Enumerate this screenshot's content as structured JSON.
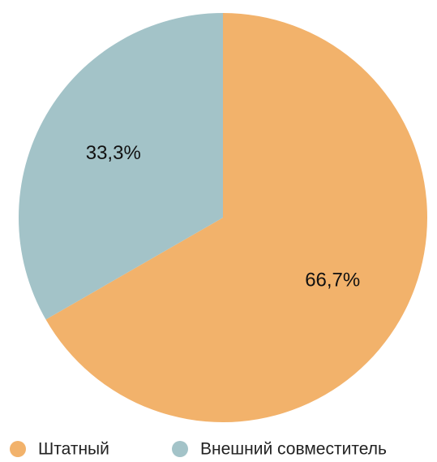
{
  "chart_data": {
    "type": "pie",
    "categories": [
      "Штатный",
      "Внешний совместитель"
    ],
    "values": [
      66.7,
      33.3
    ],
    "value_labels": [
      "66,7%",
      "33,3%"
    ],
    "colors": [
      "#f2b26b",
      "#a3c3c8"
    ]
  }
}
